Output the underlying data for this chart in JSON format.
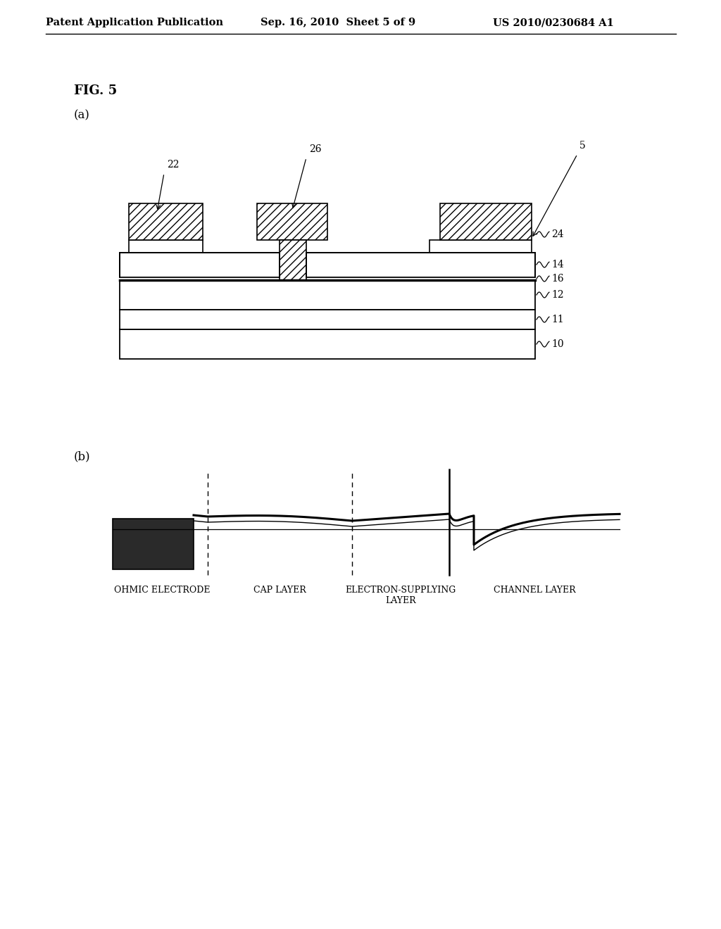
{
  "bg_color": "#ffffff",
  "header_left": "Patent Application Publication",
  "header_center": "Sep. 16, 2010  Sheet 5 of 9",
  "header_right": "US 2010/0230684 A1",
  "fig_label": "FIG. 5",
  "sub_a_label": "(a)",
  "sub_b_label": "(b)",
  "label_5": "5",
  "label_22": "22",
  "label_26": "26",
  "label_24": "24",
  "label_14": "14",
  "label_16": "16",
  "label_12": "12",
  "label_11": "11",
  "label_10": "10",
  "ohmic_label": "OHMIC ELECTRODE",
  "cap_layer_label": "CAP LAYER",
  "electron_label": "ELECTRON-SUPPLYING\nLAYER",
  "channel_label": "CHANNEL LAYER",
  "hatch_pattern": "///",
  "dark_fill": "#2a2a2a"
}
